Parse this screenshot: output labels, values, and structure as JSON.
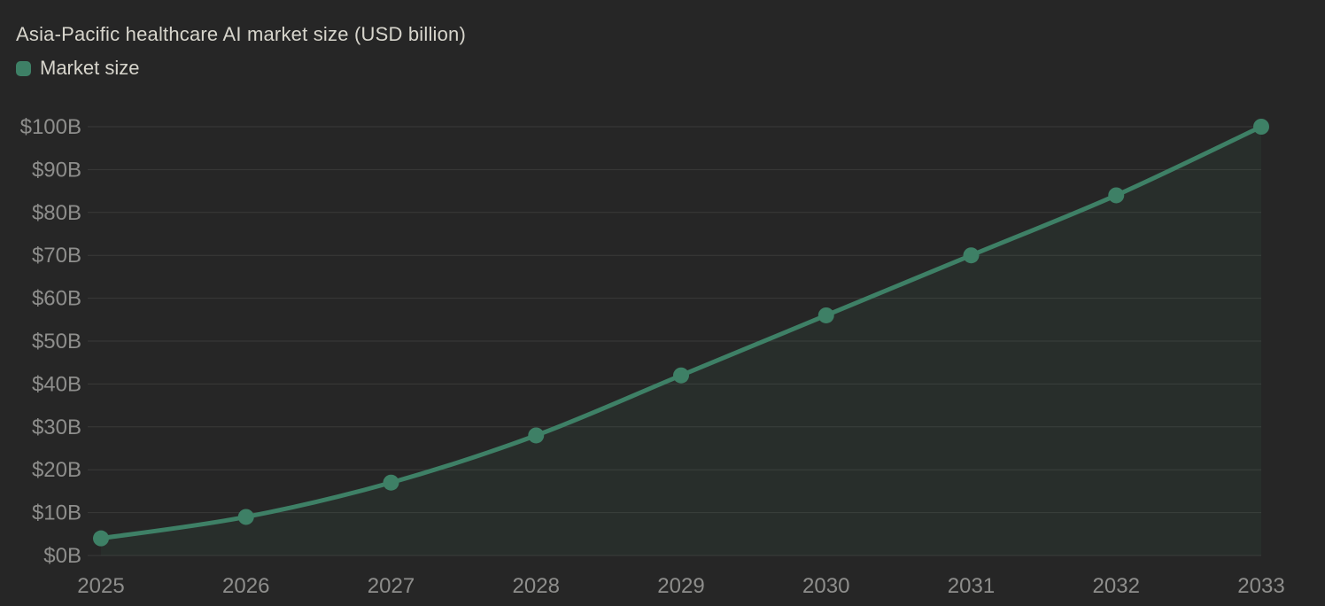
{
  "chart_data": {
    "type": "line",
    "title": "Asia-Pacific healthcare AI market size (USD billion)",
    "categories": [
      "2025",
      "2026",
      "2027",
      "2028",
      "2029",
      "2030",
      "2031",
      "2032",
      "2033"
    ],
    "series": [
      {
        "name": "Market size",
        "values": [
          4,
          9,
          17,
          28,
          42,
          56,
          70,
          84,
          100
        ]
      }
    ],
    "xlabel": "",
    "ylabel": "",
    "ylim": [
      0,
      100
    ],
    "yticks": {
      "values": [
        0,
        10,
        20,
        30,
        40,
        50,
        60,
        70,
        80,
        90,
        100
      ],
      "labels": [
        "$0B",
        "$10B",
        "$20B",
        "$30B",
        "$40B",
        "$50B",
        "$60B",
        "$70B",
        "$80B",
        "$90B",
        "$100B"
      ]
    },
    "grid": "horizontal",
    "legend": {
      "position": "top-left",
      "items": [
        {
          "label": "Market size",
          "color": "#3E8066"
        }
      ]
    },
    "style": {
      "background": "#262626",
      "line_color": "#3E8066",
      "point_color": "#3E8066",
      "area_fill": "rgba(62,128,102,0.09)",
      "grid_line_color": "#3a3a39",
      "axis_label_color": "#8e8e8c",
      "title_color": "#d7d5cc",
      "point_radius": 9,
      "line_width": 5,
      "axis_font_size": 24
    }
  }
}
